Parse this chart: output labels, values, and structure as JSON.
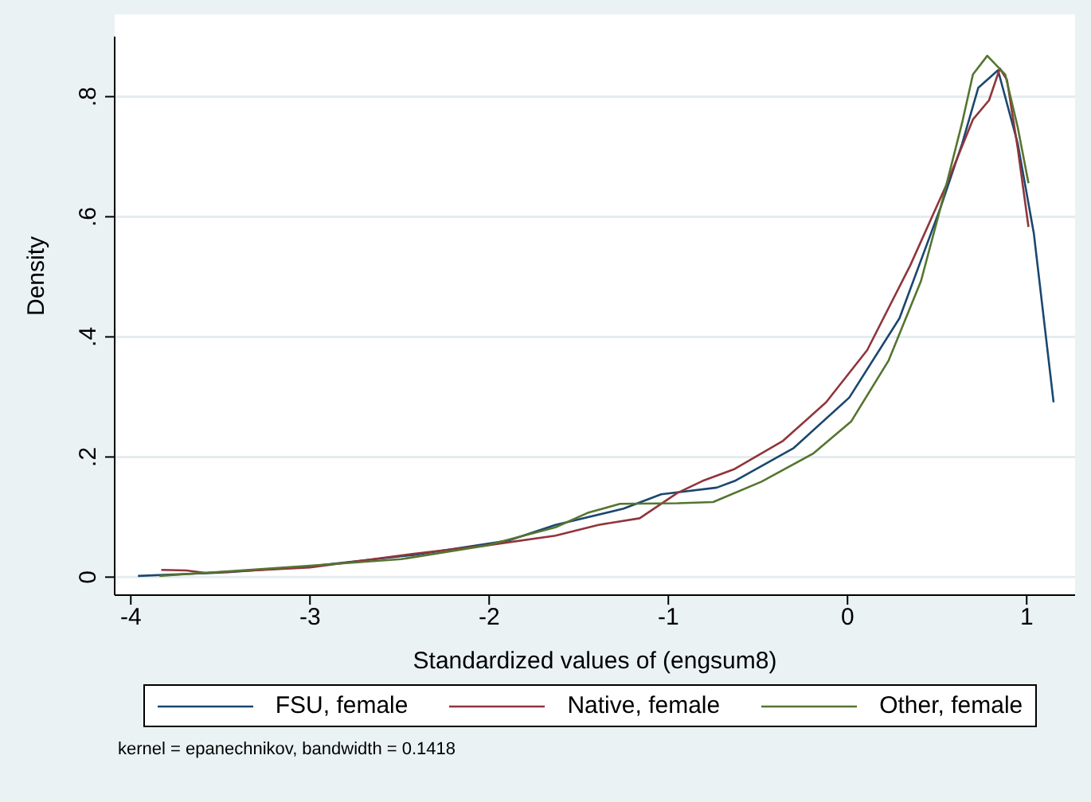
{
  "chart_data": {
    "type": "line",
    "xlabel": "Standardized values of (engsum8)",
    "ylabel": "Density",
    "xlim": [
      -4.09,
      1.27
    ],
    "ylim": [
      -0.03,
      0.9
    ],
    "xticks": [
      -4,
      -3,
      -2,
      -1,
      0,
      1
    ],
    "yticks": [
      0,
      {
        "value": 0.2,
        "label": ".2"
      },
      {
        "value": 0.4,
        "label": ".4"
      },
      {
        "value": 0.6,
        "label": ".6"
      },
      {
        "value": 0.8,
        "label": ".8"
      }
    ],
    "grid": "y",
    "legend": "bottom",
    "marker": "none",
    "line_style": "solid",
    "annotations": [
      "kernel = epanechnikov, bandwidth = 0.1418"
    ],
    "series": [
      {
        "name": "FSU, female",
        "color": "#1a476f",
        "x": [
          -3.96,
          -3.46,
          -3.0,
          -2.42,
          -1.89,
          -1.63,
          -1.25,
          -1.04,
          -0.73,
          -0.63,
          -0.3,
          0.01,
          0.29,
          0.52,
          0.64,
          0.73,
          0.84,
          0.95,
          1.04,
          1.15
        ],
        "values": [
          0.002,
          0.008,
          0.018,
          0.037,
          0.061,
          0.087,
          0.114,
          0.138,
          0.149,
          0.16,
          0.215,
          0.299,
          0.431,
          0.616,
          0.722,
          0.815,
          0.844,
          0.722,
          0.572,
          0.291
        ]
      },
      {
        "name": "Native, female",
        "color": "#90353b",
        "x": [
          -3.83,
          -3.69,
          -3.58,
          -3.0,
          -2.42,
          -2.01,
          -1.63,
          -1.39,
          -1.16,
          -0.95,
          -0.81,
          -0.63,
          -0.36,
          -0.12,
          0.11,
          0.35,
          0.55,
          0.7,
          0.79,
          0.85,
          0.89,
          0.95,
          1.01
        ],
        "values": [
          0.012,
          0.011,
          0.007,
          0.016,
          0.039,
          0.053,
          0.069,
          0.087,
          0.098,
          0.14,
          0.16,
          0.18,
          0.227,
          0.291,
          0.378,
          0.519,
          0.652,
          0.762,
          0.794,
          0.847,
          0.828,
          0.714,
          0.583
        ]
      },
      {
        "name": "Other, female",
        "color": "#55752f",
        "x": [
          -3.84,
          -3.0,
          -2.49,
          -2.01,
          -1.63,
          -1.45,
          -1.27,
          -0.95,
          -0.75,
          -0.48,
          -0.19,
          0.02,
          0.23,
          0.41,
          0.52,
          0.64,
          0.7,
          0.78,
          0.88,
          0.95,
          1.01
        ],
        "values": [
          0.002,
          0.019,
          0.03,
          0.053,
          0.083,
          0.107,
          0.122,
          0.123,
          0.125,
          0.159,
          0.206,
          0.259,
          0.361,
          0.493,
          0.616,
          0.757,
          0.837,
          0.868,
          0.837,
          0.749,
          0.656
        ]
      }
    ]
  }
}
